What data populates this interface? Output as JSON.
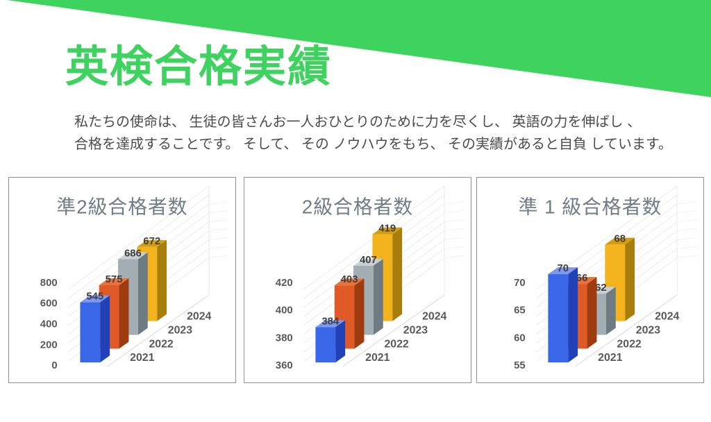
{
  "banner": {
    "color": "#3ED35E"
  },
  "header": {
    "title": "英検合格実績",
    "title_color": "#3ED35E",
    "description_lines": [
      "私たちの使命は、 生徒の皆さんお一人おひとりのために力を尽くし、 英語の力を伸ばし 、",
      "合格を達成することです。 そして、 その ノウハウをもち、 その実績があると自負 しています。"
    ]
  },
  "chart_data": [
    {
      "type": "bar",
      "style": "3d-column",
      "title": "準2級合格者数",
      "categories": [
        "2021",
        "2022",
        "2023",
        "2024"
      ],
      "values": [
        545,
        575,
        686,
        672
      ],
      "yticks": [
        0,
        200,
        400,
        600,
        800
      ],
      "ylim": [
        0,
        800
      ],
      "legend": "none",
      "value_labels": true
    },
    {
      "type": "bar",
      "style": "3d-column",
      "title": "2級合格者数",
      "categories": [
        "2021",
        "2022",
        "2023",
        "2024"
      ],
      "values": [
        384,
        403,
        407,
        419
      ],
      "yticks": [
        360,
        380,
        400,
        420
      ],
      "ylim": [
        360,
        420
      ],
      "legend": "none",
      "value_labels": true
    },
    {
      "type": "bar",
      "style": "3d-column",
      "title": "準 1 級合格者数",
      "categories": [
        "2021",
        "2022",
        "2023",
        "2024"
      ],
      "values": [
        70,
        66,
        62,
        68
      ],
      "yticks": [
        55,
        60,
        65,
        70
      ],
      "ylim": [
        55,
        70
      ],
      "legend": "none",
      "value_labels": true
    }
  ],
  "chart_style": {
    "title_color": "#707C86",
    "tick_color": "#595959",
    "year_label_color": "#595959",
    "value_label_color": "#3F3F3F",
    "panel_border": "#8A9299",
    "wall_grid_color": "#ECECEC",
    "right_wall_grid_color": "#F2F2F2",
    "edge_color": "#E9E9E9",
    "floor_color": "#D9D9D9",
    "palette": [
      {
        "name": "2021",
        "front": "#3A67E8",
        "top": "#7D97F2",
        "side": "#2041B8"
      },
      {
        "name": "2022",
        "front": "#E05A28",
        "top": "#EA7138",
        "side": "#9E3C10"
      },
      {
        "name": "2023",
        "front": "#A3ADB4",
        "top": "#C8D0D5",
        "side": "#6F7B83"
      },
      {
        "name": "2024",
        "front": "#F3B31C",
        "top": "#D29D10",
        "side": "#A87D0A"
      }
    ]
  }
}
